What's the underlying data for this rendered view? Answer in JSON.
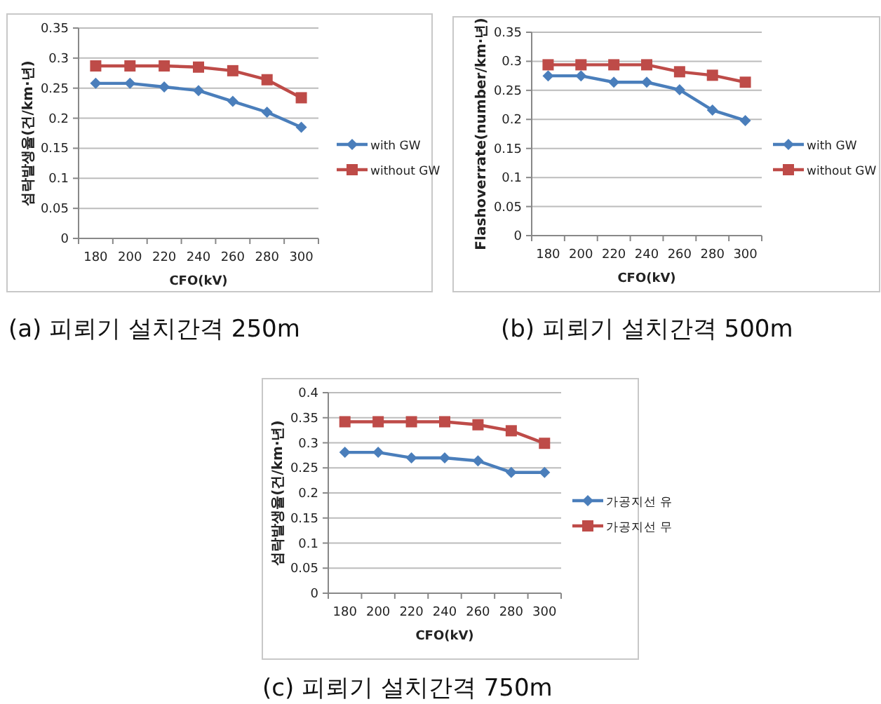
{
  "chart_data": [
    {
      "type": "line",
      "xlabel": "CFO(kV)",
      "ylabel": "섬락발생율(건/km·년)",
      "categories": [
        "180",
        "200",
        "220",
        "240",
        "260",
        "280",
        "300"
      ],
      "ylim": [
        0,
        0.35
      ],
      "yticks": [
        0,
        0.05,
        0.1,
        0.15,
        0.2,
        0.25,
        0.3,
        0.35
      ],
      "grid": "y",
      "legend": "right",
      "annotations": [
        "(a)  피뢰기  설치간격  250m"
      ],
      "series": [
        {
          "name": "with GW",
          "color": "#4a7ebb",
          "marker": "diamond",
          "values": [
            0.258,
            0.258,
            0.252,
            0.246,
            0.228,
            0.21,
            0.185
          ]
        },
        {
          "name": "without GW",
          "color": "#be4b48",
          "marker": "square",
          "values": [
            0.287,
            0.287,
            0.287,
            0.285,
            0.279,
            0.264,
            0.234
          ]
        }
      ]
    },
    {
      "type": "line",
      "xlabel": "CFO(kV)",
      "ylabel": "Flashoverrate(number/km·년)",
      "categories": [
        "180",
        "200",
        "220",
        "240",
        "260",
        "280",
        "300"
      ],
      "ylim": [
        0,
        0.35
      ],
      "yticks": [
        0,
        0.05,
        0.1,
        0.15,
        0.2,
        0.25,
        0.3,
        0.35
      ],
      "grid": "y",
      "legend": "right",
      "annotations": [
        "(b)  피뢰기  설치간격  500m"
      ],
      "series": [
        {
          "name": "with GW",
          "color": "#4a7ebb",
          "marker": "diamond",
          "values": [
            0.275,
            0.275,
            0.264,
            0.264,
            0.251,
            0.216,
            0.198
          ]
        },
        {
          "name": "without GW",
          "color": "#be4b48",
          "marker": "square",
          "values": [
            0.294,
            0.294,
            0.294,
            0.294,
            0.282,
            0.276,
            0.264
          ]
        }
      ]
    },
    {
      "type": "line",
      "xlabel": "CFO(kV)",
      "ylabel": "섬락발생율(건/km·년)",
      "categories": [
        "180",
        "200",
        "220",
        "240",
        "260",
        "280",
        "300"
      ],
      "ylim": [
        0,
        0.4
      ],
      "yticks": [
        0,
        0.05,
        0.1,
        0.15,
        0.2,
        0.25,
        0.3,
        0.35,
        0.4
      ],
      "grid": "y",
      "legend": "right",
      "annotations": [
        "(c)  피뢰기  설치간격  750m"
      ],
      "series": [
        {
          "name": "가공지선 유",
          "color": "#4a7ebb",
          "marker": "diamond",
          "values": [
            0.281,
            0.281,
            0.27,
            0.27,
            0.264,
            0.241,
            0.241
          ]
        },
        {
          "name": "가공지선 무",
          "color": "#be4b48",
          "marker": "square",
          "values": [
            0.342,
            0.342,
            0.342,
            0.342,
            0.336,
            0.324,
            0.299
          ]
        }
      ]
    }
  ]
}
